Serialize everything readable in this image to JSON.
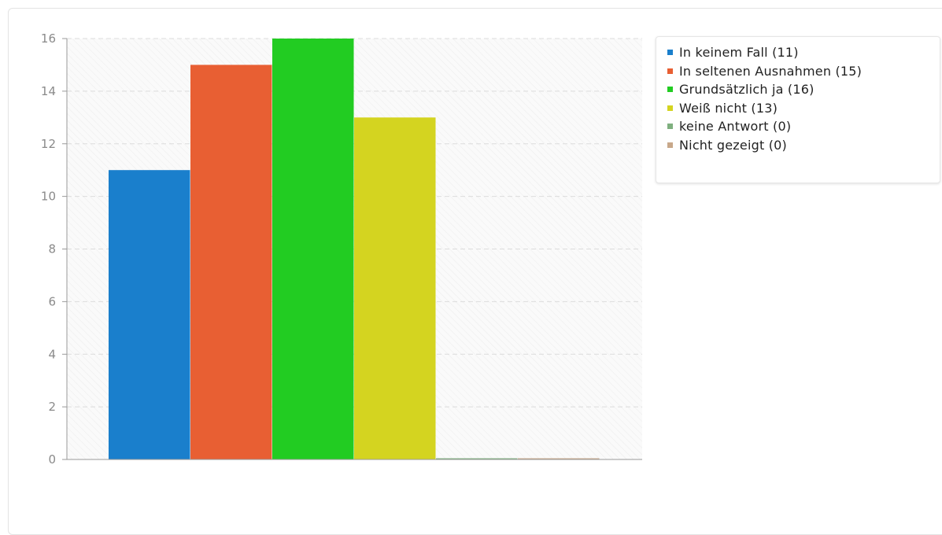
{
  "chart_data": {
    "type": "bar",
    "title": "",
    "xlabel": "",
    "ylabel": "",
    "ylim": [
      0,
      16
    ],
    "yticks": [
      "0",
      "2",
      "4",
      "6",
      "8",
      "10",
      "12",
      "14",
      "16"
    ],
    "grid": true,
    "legend_position": "top-right",
    "series": [
      {
        "name": "In keinem Fall (11)",
        "value": 11,
        "color": "#1a7fcc"
      },
      {
        "name": "In seltenen Ausnahmen (15)",
        "value": 15,
        "color": "#e85f33"
      },
      {
        "name": "Grundsätzlich ja (16)",
        "value": 16,
        "color": "#22cc22"
      },
      {
        "name": "Weiß nicht (13)",
        "value": 13,
        "color": "#d4d420"
      },
      {
        "name": "keine Antwort (0)",
        "value": 0,
        "color": "#7fb07f"
      },
      {
        "name": "Nicht gezeigt (0)",
        "value": 0,
        "color": "#c8a88a"
      }
    ]
  }
}
